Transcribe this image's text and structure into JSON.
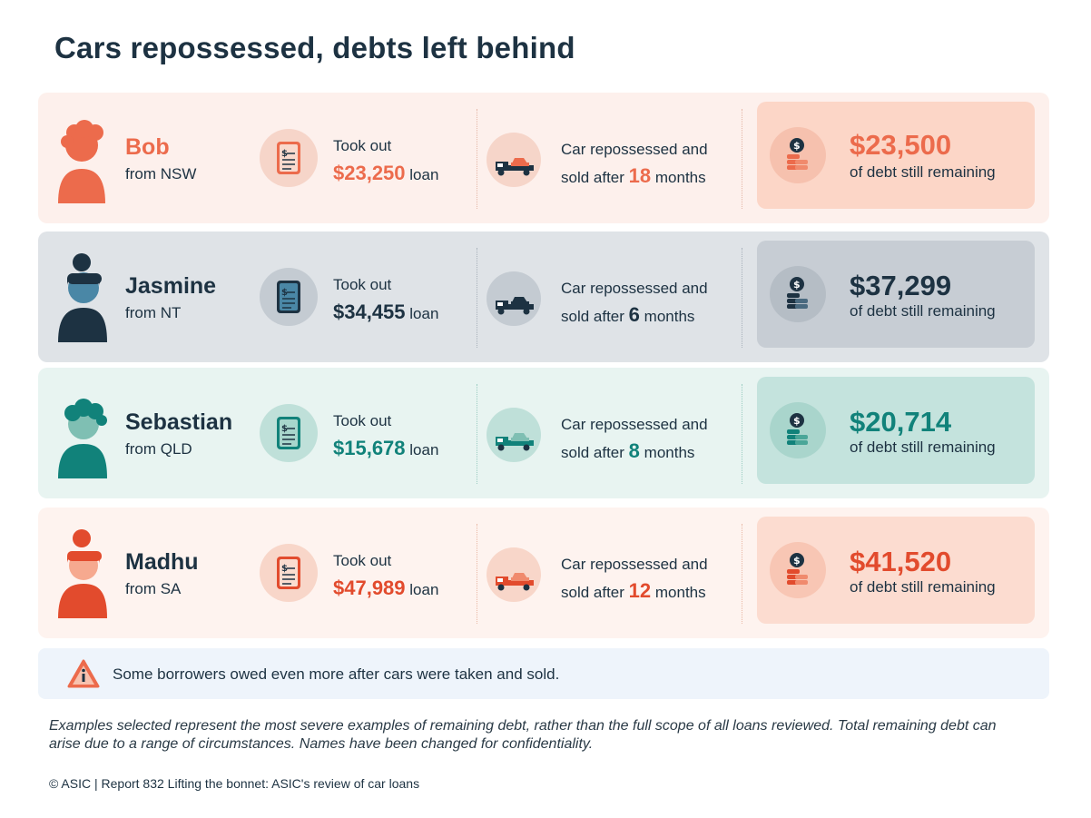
{
  "title": "Cars repossessed, debts left behind",
  "colors": {
    "navy": "#1d3242",
    "orange": "#ec6b4c",
    "teal": "#11827a",
    "red": "#e24b2d"
  },
  "rows": [
    {
      "name": "Bob",
      "from": "from NSW",
      "loan_prefix": "Took out",
      "loan_amount": "$23,250",
      "loan_suffix": "loan",
      "car_line1": "Car repossessed and",
      "car_line2_prefix": "sold after",
      "months": "18",
      "months_suffix": "months",
      "debt_amount": "$23,500",
      "debt_label": "of debt still remaining"
    },
    {
      "name": "Jasmine",
      "from": "from NT",
      "loan_prefix": "Took out",
      "loan_amount": "$34,455",
      "loan_suffix": "loan",
      "car_line1": "Car repossessed and",
      "car_line2_prefix": "sold after",
      "months": "6",
      "months_suffix": "months",
      "debt_amount": "$37,299",
      "debt_label": "of debt still remaining"
    },
    {
      "name": "Sebastian",
      "from": "from QLD",
      "loan_prefix": "Took out",
      "loan_amount": "$15,678",
      "loan_suffix": "loan",
      "car_line1": "Car repossessed and",
      "car_line2_prefix": "sold after",
      "months": "8",
      "months_suffix": "months",
      "debt_amount": "$20,714",
      "debt_label": "of debt still remaining"
    },
    {
      "name": "Madhu",
      "from": "from SA",
      "loan_prefix": "Took out",
      "loan_amount": "$47,989",
      "loan_suffix": "loan",
      "car_line1": "Car repossessed and",
      "car_line2_prefix": "sold after",
      "months": "12",
      "months_suffix": "months",
      "debt_amount": "$41,520",
      "debt_label": "of debt still remaining"
    }
  ],
  "callout": "Some borrowers owed even more after cars were taken and sold.",
  "footnote": "Examples selected represent the most severe examples of remaining debt, rather than the full scope of all loans reviewed. Total remaining debt can arise due to a range of circumstances. Names have been changed for confidentiality.",
  "copyright": "© ASIC | Report 832 Lifting the bonnet: ASIC's review of car loans"
}
